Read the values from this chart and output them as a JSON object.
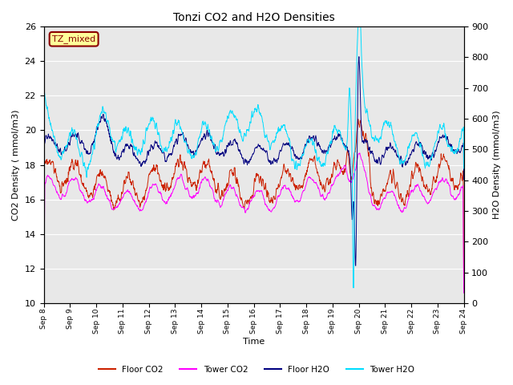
{
  "title": "Tonzi CO2 and H2O Densities",
  "xlabel": "Time",
  "ylabel_left": "CO2 Density ( mmol/m3)",
  "ylabel_right": "H2O Density (mmol/m3)",
  "ylim_left": [
    10,
    26
  ],
  "ylim_right": [
    0,
    900
  ],
  "yticks_left": [
    10,
    12,
    14,
    16,
    18,
    20,
    22,
    24,
    26
  ],
  "yticks_right": [
    0,
    100,
    200,
    300,
    400,
    500,
    600,
    700,
    800,
    900
  ],
  "annotation_text": "TZ_mixed",
  "annotation_color": "#8b0000",
  "annotation_bg": "#ffff99",
  "line_colors": {
    "floor_co2": "#cc2200",
    "tower_co2": "#ff00ff",
    "floor_h2o": "#000080",
    "tower_h2o": "#00ddff"
  },
  "legend_labels": [
    "Floor CO2",
    "Tower CO2",
    "Floor H2O",
    "Tower H2O"
  ],
  "bg_color": "#e8e8e8",
  "grid_color": "#ffffff",
  "seed": 17
}
